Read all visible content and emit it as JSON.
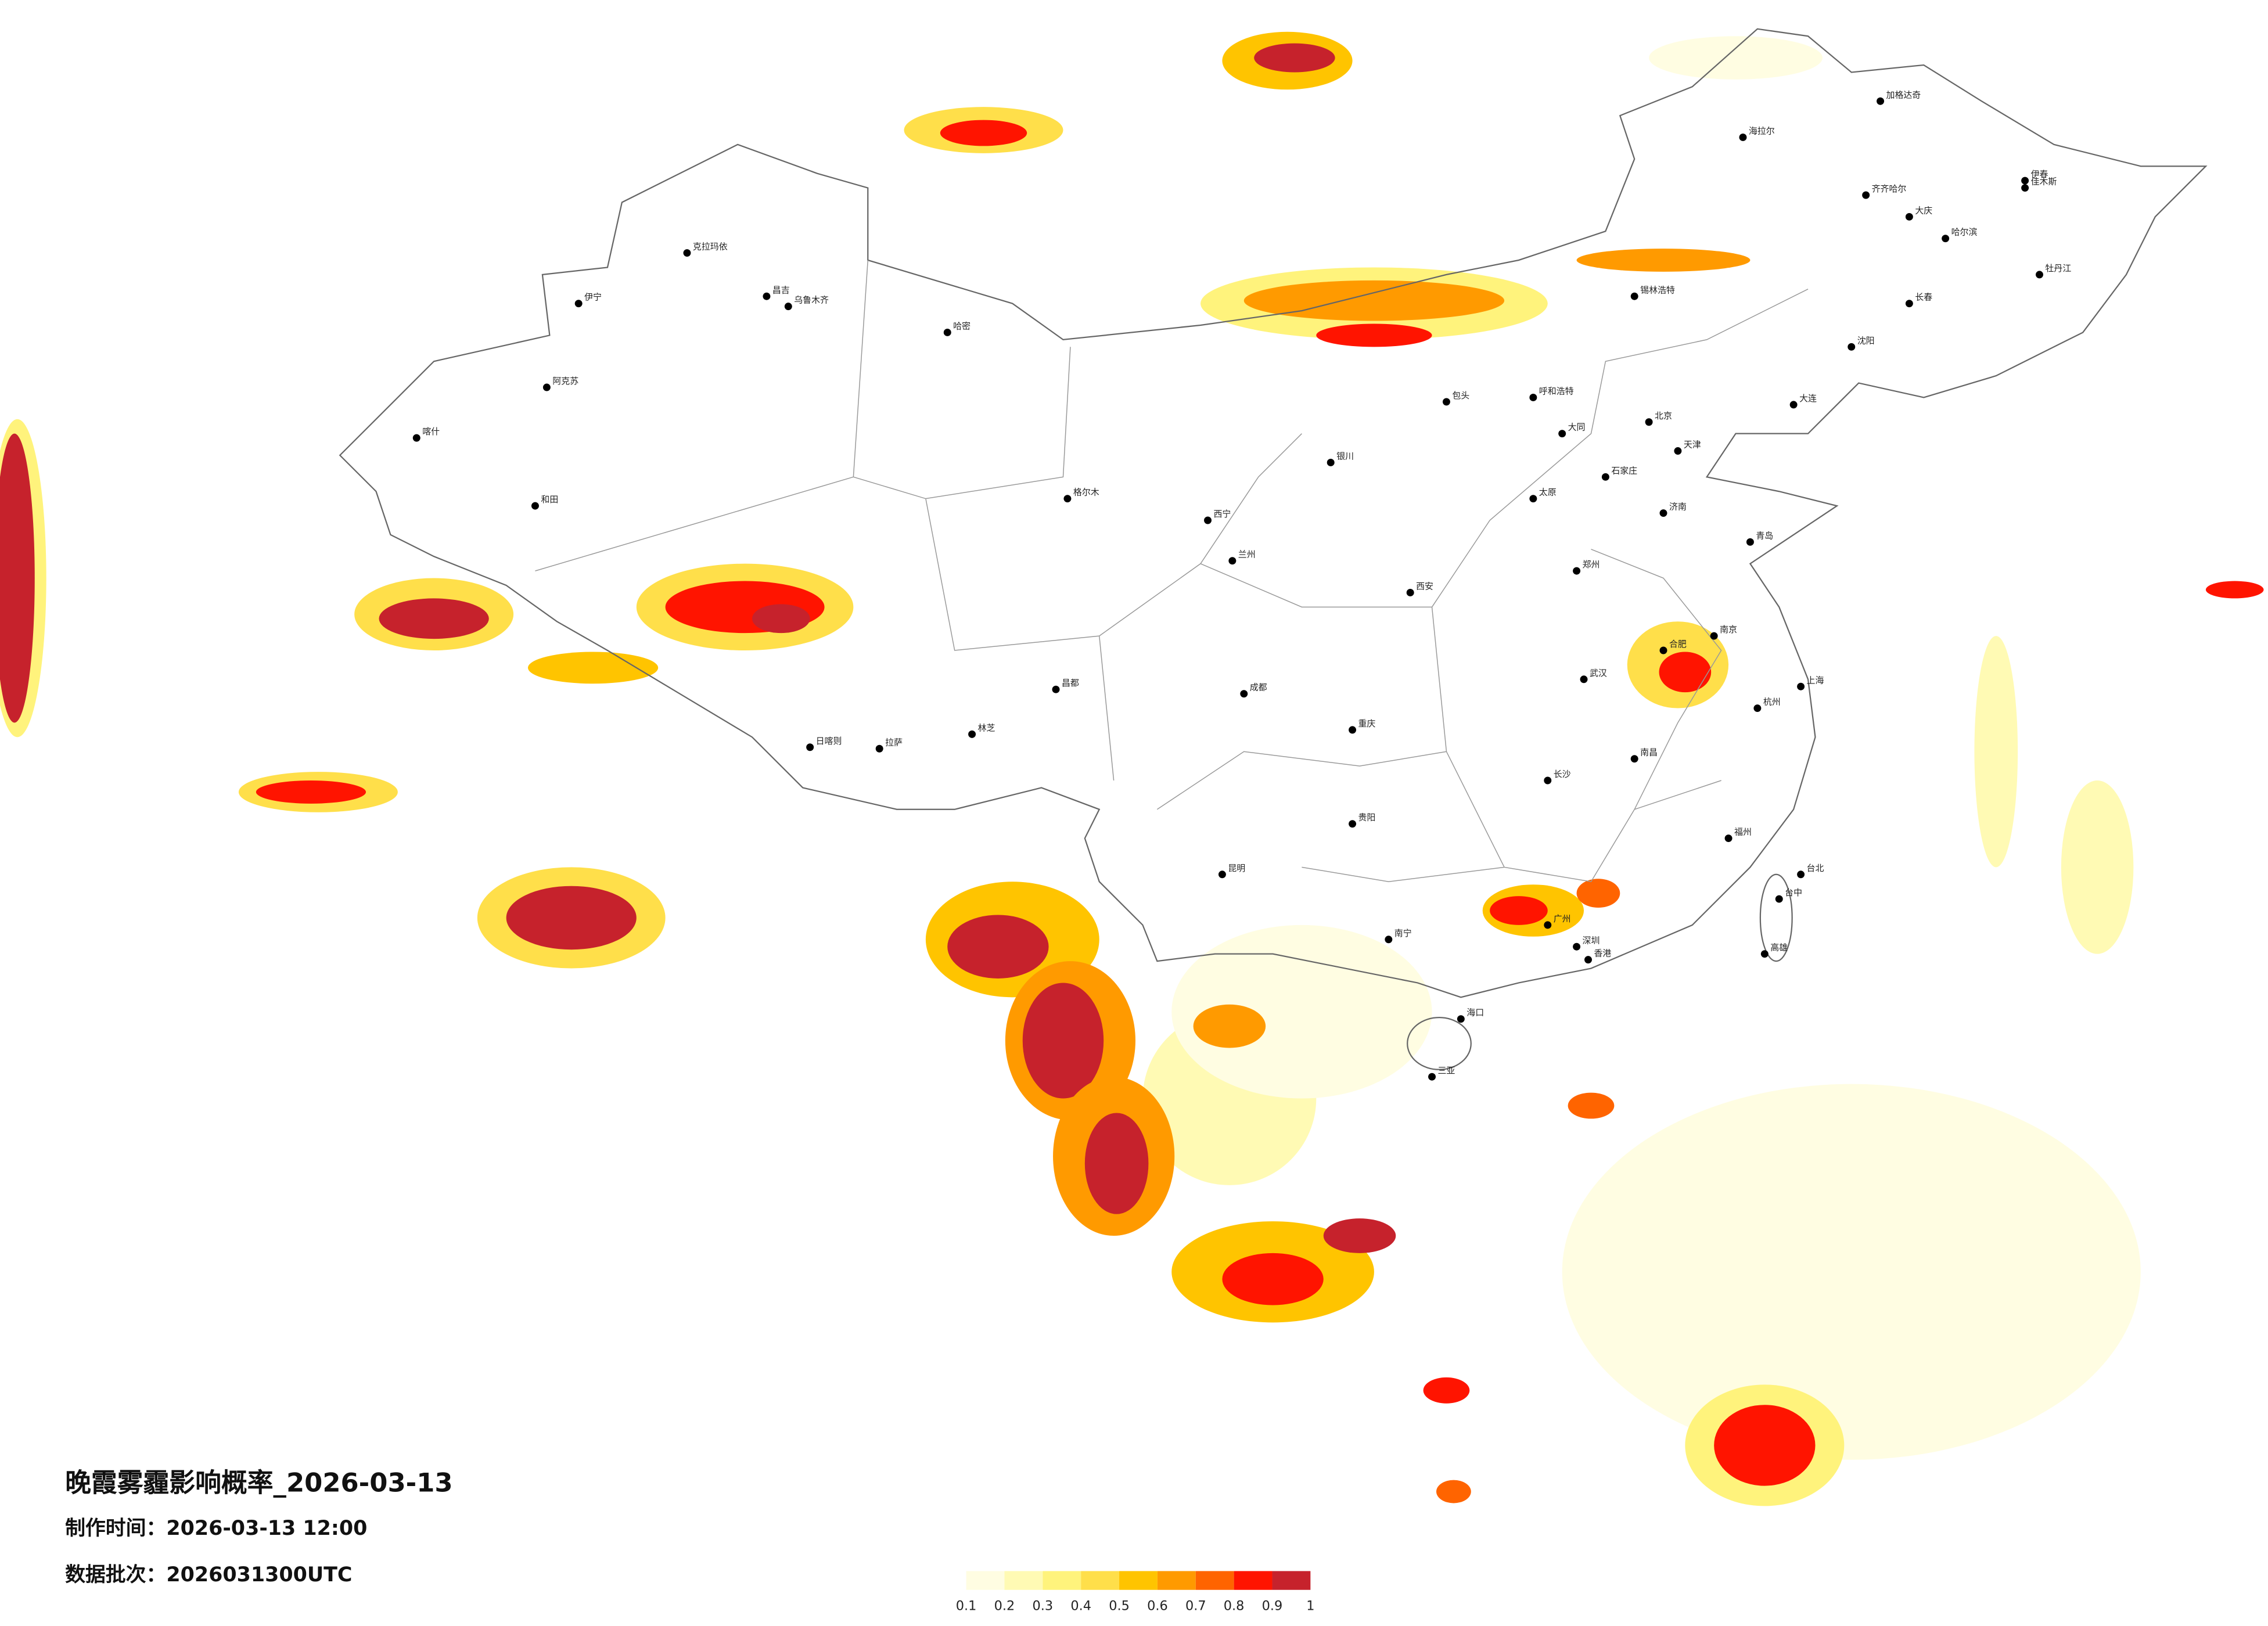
{
  "header": {
    "title": "晚霞雾霾影响概率_2026-03-13",
    "produced": "制作时间：2026-03-13 12:00",
    "batch": "数据批次：2026031300UTC"
  },
  "legend": {
    "ticks": [
      0.1,
      0.2,
      0.3,
      0.4,
      0.5,
      0.6,
      0.7,
      0.8,
      0.9,
      1
    ],
    "colors": [
      "#fffde2",
      "#fffab4",
      "#fff37c",
      "#ffdf4a",
      "#ffc400",
      "#ff9a00",
      "#ff6400",
      "#ff1400",
      "#c6222c"
    ]
  },
  "cities": [
    "昌吉",
    "乌鲁木齐",
    "克拉玛依",
    "伊宁",
    "阿克苏",
    "喀什",
    "和田",
    "哈密",
    "拉萨",
    "日喀则",
    "林芝",
    "昌都",
    "格尔木",
    "西宁",
    "兰州",
    "银川",
    "呼和浩特",
    "包头",
    "北京",
    "天津",
    "石家庄",
    "太原",
    "西安",
    "郑州",
    "济南",
    "青岛",
    "南京",
    "上海",
    "杭州",
    "合肥",
    "武汉",
    "长沙",
    "南昌",
    "福州",
    "台北",
    "台中",
    "高雄",
    "广州",
    "深圳",
    "香港",
    "南宁",
    "海口",
    "三亚",
    "昆明",
    "贵阳",
    "重庆",
    "成都",
    "沈阳",
    "长春",
    "哈尔滨",
    "大庆",
    "齐齐哈尔",
    "海拉尔",
    "加格达奇",
    "佳木斯",
    "伊春",
    "牡丹江",
    "锡林浩特",
    "大同",
    "大连"
  ]
}
